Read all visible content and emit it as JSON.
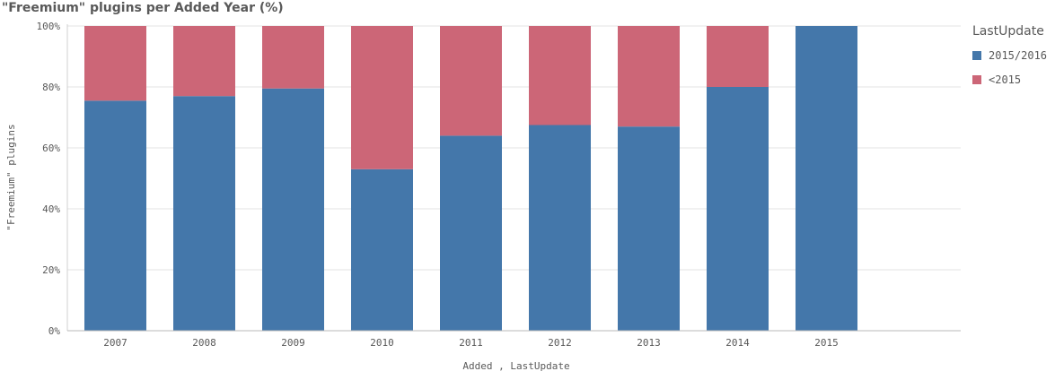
{
  "chart_data": {
    "type": "bar",
    "stacked": true,
    "title": "\"Freemium\" plugins per Added Year (%)",
    "xlabel": "Added , LastUpdate",
    "ylabel": "\"Freemium\" plugins",
    "ylim": [
      0,
      100
    ],
    "y_ticks": [
      "0%",
      "20%",
      "40%",
      "60%",
      "80%",
      "100%"
    ],
    "grid": true,
    "legend_title": "LastUpdate",
    "legend_position": "right",
    "categories": [
      "2007",
      "2008",
      "2009",
      "2010",
      "2011",
      "2012",
      "2013",
      "2014",
      "2015"
    ],
    "series": [
      {
        "name": "2015/2016",
        "color": "#4477aa",
        "values": [
          75.5,
          77,
          79.5,
          53,
          64,
          67.5,
          67,
          80,
          100
        ]
      },
      {
        "name": "<2015",
        "color": "#cc6677",
        "values": [
          24.5,
          23,
          20.5,
          47,
          36,
          32.5,
          33,
          20,
          0
        ]
      }
    ]
  }
}
